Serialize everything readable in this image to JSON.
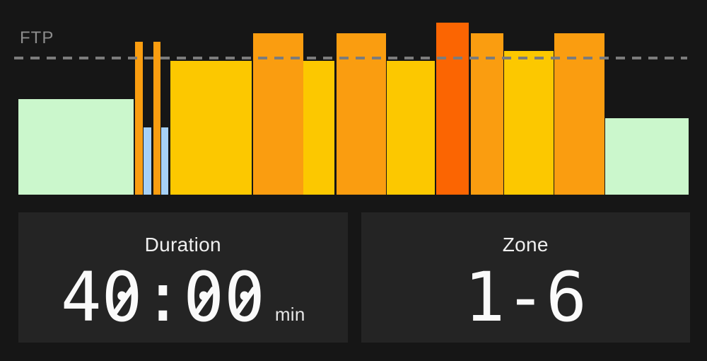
{
  "theme": {
    "page_bg": "#161616",
    "card_bg": "#242424",
    "text_primary": "#fafafa",
    "text_secondary": "#efefef",
    "unit_color": "#e6e6e6",
    "ftp_label": "#8d8d8d",
    "ftp_line": "#7c7c7c"
  },
  "chart": {
    "ftp_label": "FTP",
    "zone_colors": {
      "green": "#cbf7cc",
      "blue": "#a6d0f6",
      "yellow": "#fcc800",
      "orange": "#fa9d10",
      "red": "#fb6502"
    }
  },
  "chart_data": {
    "type": "bar",
    "description": "Workout interval power profile over time; bar height is power relative to FTP (dashed line = 100% FTP)",
    "ftp_line_pct": 100,
    "x_axis": "percent of total workout time",
    "y_axis": "power, percent of FTP",
    "segments": [
      {
        "start_pct": 0.0,
        "width_pct": 17.16,
        "power_pct": 70,
        "color": "green"
      },
      {
        "start_pct": 17.37,
        "width_pct": 1.16,
        "power_pct": 112,
        "color": "orange"
      },
      {
        "start_pct": 18.63,
        "width_pct": 1.16,
        "power_pct": 49,
        "color": "blue"
      },
      {
        "start_pct": 20.11,
        "width_pct": 1.05,
        "power_pct": 112,
        "color": "orange"
      },
      {
        "start_pct": 21.26,
        "width_pct": 1.05,
        "power_pct": 49,
        "color": "blue"
      },
      {
        "start_pct": 22.63,
        "width_pct": 12.11,
        "power_pct": 98,
        "color": "yellow"
      },
      {
        "start_pct": 34.95,
        "width_pct": 7.47,
        "power_pct": 118,
        "color": "orange"
      },
      {
        "start_pct": 42.42,
        "width_pct": 4.63,
        "power_pct": 98,
        "color": "yellow"
      },
      {
        "start_pct": 47.37,
        "width_pct": 7.47,
        "power_pct": 118,
        "color": "orange"
      },
      {
        "start_pct": 54.95,
        "width_pct": 7.16,
        "power_pct": 98,
        "color": "yellow"
      },
      {
        "start_pct": 62.32,
        "width_pct": 4.84,
        "power_pct": 126,
        "color": "red"
      },
      {
        "start_pct": 67.47,
        "width_pct": 4.84,
        "power_pct": 118,
        "color": "orange"
      },
      {
        "start_pct": 72.42,
        "width_pct": 7.37,
        "power_pct": 105,
        "color": "yellow"
      },
      {
        "start_pct": 79.89,
        "width_pct": 7.47,
        "power_pct": 118,
        "color": "orange"
      },
      {
        "start_pct": 87.47,
        "width_pct": 12.42,
        "power_pct": 56,
        "color": "green"
      }
    ]
  },
  "cards": {
    "duration": {
      "label": "Duration",
      "value": "40:00",
      "unit": "min"
    },
    "zone": {
      "label": "Zone",
      "value": "1-6",
      "unit": ""
    }
  }
}
